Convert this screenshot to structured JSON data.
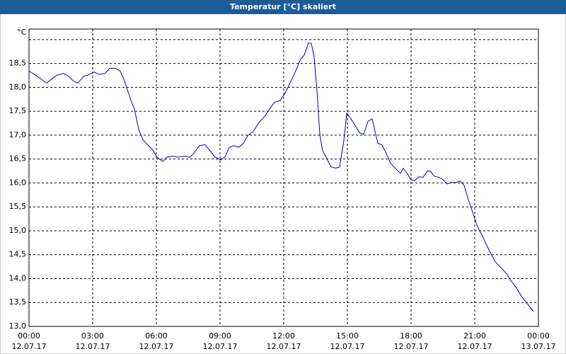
{
  "chart_data": {
    "type": "line",
    "title": "Temperatur [°C] skaliert",
    "y_label": "°C",
    "x": [
      0,
      0.3,
      0.57,
      0.83,
      1.03,
      1.3,
      1.63,
      1.87,
      2.1,
      2.3,
      2.57,
      2.8,
      3.07,
      3.3,
      3.57,
      3.8,
      4.07,
      4.3,
      4.5,
      4.8,
      4.97,
      5.17,
      5.37,
      5.63,
      5.83,
      6.03,
      6.3,
      6.5,
      6.77,
      7.03,
      7.3,
      7.57,
      7.77,
      8.03,
      8.3,
      8.57,
      8.77,
      9.03,
      9.23,
      9.43,
      9.63,
      9.9,
      10.1,
      10.3,
      10.57,
      10.83,
      11.1,
      11.37,
      11.57,
      11.83,
      12.1,
      12.37,
      12.57,
      12.77,
      12.97,
      13.17,
      13.3,
      13.43,
      13.57,
      13.7,
      13.83,
      14.03,
      14.23,
      14.43,
      14.63,
      14.83,
      14.97,
      15.17,
      15.37,
      15.57,
      15.77,
      15.97,
      16.17,
      16.43,
      16.63,
      16.83,
      17.03,
      17.23,
      17.5,
      17.63,
      17.83,
      17.97,
      18.17,
      18.37,
      18.57,
      18.77,
      18.9,
      19.1,
      19.3,
      19.5,
      19.7,
      19.9,
      20.1,
      20.3,
      20.5,
      20.7,
      20.9,
      21.1,
      21.3,
      21.5,
      21.7,
      21.97,
      22.23,
      22.5,
      22.7,
      22.97,
      23.23,
      23.5,
      23.77
    ],
    "values": [
      18.34,
      18.26,
      18.17,
      18.09,
      18.16,
      18.25,
      18.29,
      18.23,
      18.13,
      18.09,
      18.23,
      18.26,
      18.32,
      18.27,
      18.29,
      18.4,
      18.4,
      18.34,
      18.13,
      17.73,
      17.54,
      17.12,
      16.9,
      16.78,
      16.69,
      16.54,
      16.45,
      16.54,
      16.56,
      16.54,
      16.56,
      16.54,
      16.62,
      16.78,
      16.8,
      16.65,
      16.54,
      16.48,
      16.54,
      16.74,
      16.78,
      16.75,
      16.83,
      16.99,
      17.08,
      17.26,
      17.39,
      17.57,
      17.69,
      17.72,
      17.91,
      18.16,
      18.35,
      18.57,
      18.68,
      18.93,
      18.92,
      18.65,
      17.91,
      17.02,
      16.68,
      16.51,
      16.34,
      16.31,
      16.33,
      16.87,
      17.46,
      17.34,
      17.2,
      17.05,
      17.02,
      17.29,
      17.34,
      16.83,
      16.8,
      16.62,
      16.42,
      16.32,
      16.2,
      16.31,
      16.19,
      16.08,
      16.05,
      16.13,
      16.12,
      16.25,
      16.25,
      16.14,
      16.12,
      16.07,
      15.98,
      16.01,
      16.01,
      16.04,
      15.95,
      15.65,
      15.39,
      15.12,
      14.94,
      14.76,
      14.57,
      14.35,
      14.23,
      14.1,
      13.96,
      13.8,
      13.61,
      13.46,
      13.31
    ],
    "color": "#0000cc",
    "xlim": [
      0,
      24
    ],
    "xticks": [
      {
        "value": 0,
        "label": "00:00",
        "date": "12.07.17"
      },
      {
        "value": 3,
        "label": "03:00",
        "date": "12.07.17"
      },
      {
        "value": 6,
        "label": "06:00",
        "date": "12.07.17"
      },
      {
        "value": 9,
        "label": "09:00",
        "date": "12.07.17"
      },
      {
        "value": 12,
        "label": "12:00",
        "date": "12.07.17"
      },
      {
        "value": 15,
        "label": "15:00",
        "date": "12.07.17"
      },
      {
        "value": 18,
        "label": "18:00",
        "date": "12.07.17"
      },
      {
        "value": 21,
        "label": "21:00",
        "date": "12.07.17"
      },
      {
        "value": 24,
        "label": "00:00",
        "date": "13.07.17"
      }
    ],
    "ylim": [
      13,
      19.22
    ],
    "yticks": [
      {
        "value": 13,
        "label": "13,0"
      },
      {
        "value": 13.5,
        "label": "13,5"
      },
      {
        "value": 14,
        "label": "14,0"
      },
      {
        "value": 14.5,
        "label": "14,5"
      },
      {
        "value": 15,
        "label": "15,0"
      },
      {
        "value": 15.5,
        "label": "15,5"
      },
      {
        "value": 16,
        "label": "16,0"
      },
      {
        "value": 16.5,
        "label": "16,5"
      },
      {
        "value": 17,
        "label": "17,0"
      },
      {
        "value": 17.5,
        "label": "17,5"
      },
      {
        "value": 18,
        "label": "18,0"
      },
      {
        "value": 18.5,
        "label": "18,5"
      },
      {
        "value": 19,
        "label": ""
      }
    ],
    "grid": true
  }
}
